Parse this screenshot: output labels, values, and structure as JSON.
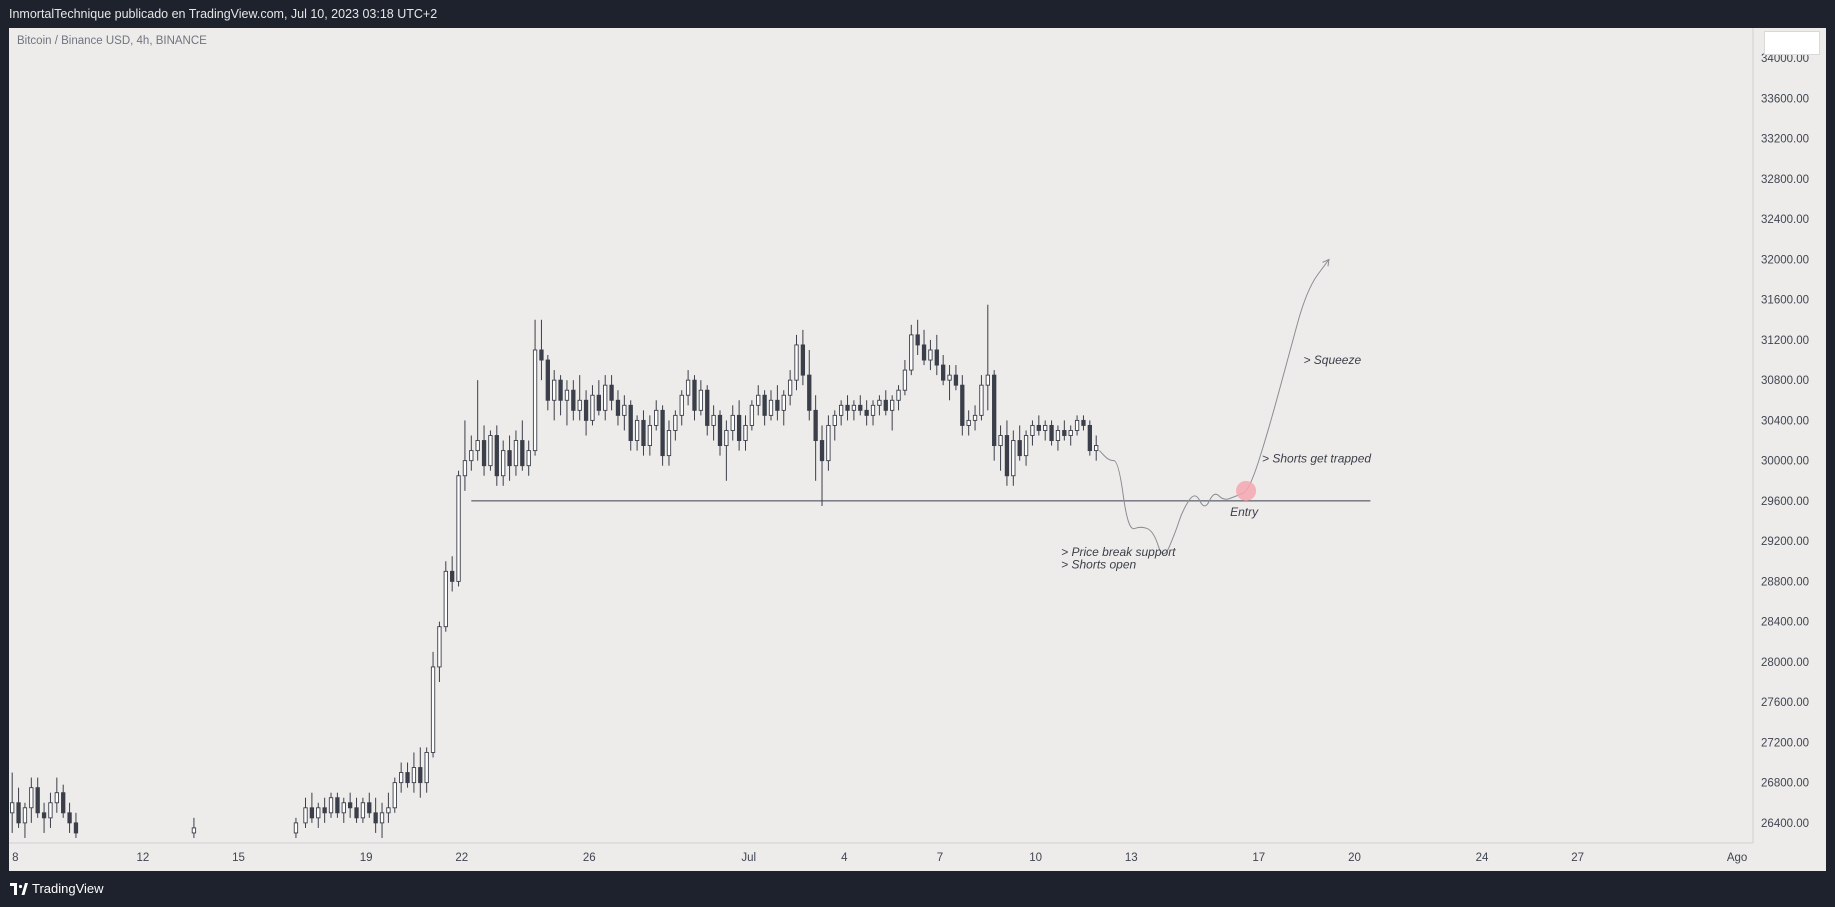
{
  "header": {
    "publish_text": "InmortalTechnique publicado en TradingView.com, Jul 10, 2023 03:18 UTC+2"
  },
  "footer": {
    "brand": "TradingView",
    "logo_icon": "tradingview-logo-icon"
  },
  "colors": {
    "background": "#1e222d",
    "chart_bg": "#edecea",
    "candle": "#3b3f4a",
    "highlight": "#f4a7b0"
  },
  "chart_data": {
    "type": "candlestick",
    "symbol": "Bitcoin / Binance USD, 4h, BINANCE",
    "y_ticks": [
      34000,
      33600,
      33200,
      32800,
      32400,
      32000,
      31600,
      31200,
      30800,
      30400,
      30000,
      29600,
      29200,
      28800,
      28400,
      28000,
      27600,
      27200,
      26800,
      26400
    ],
    "x_ticks": [
      {
        "label": "8",
        "day": 8
      },
      {
        "label": "12",
        "day": 12
      },
      {
        "label": "15",
        "day": 15
      },
      {
        "label": "19",
        "day": 19
      },
      {
        "label": "22",
        "day": 22
      },
      {
        "label": "26",
        "day": 26
      },
      {
        "label": "Jul",
        "day": 31
      },
      {
        "label": "4",
        "day": 34
      },
      {
        "label": "7",
        "day": 37
      },
      {
        "label": "10",
        "day": 40
      },
      {
        "label": "13",
        "day": 43
      },
      {
        "label": "17",
        "day": 47
      },
      {
        "label": "20",
        "day": 50
      },
      {
        "label": "24",
        "day": 54
      },
      {
        "label": "27",
        "day": 57
      },
      {
        "label": "Ago",
        "day": 62
      }
    ],
    "series_approx": [
      [
        7.7,
        26350,
        26700,
        26250,
        26500
      ],
      [
        7.9,
        26500,
        26900,
        26300,
        26600
      ],
      [
        8.1,
        26600,
        26750,
        26350,
        26400
      ],
      [
        8.3,
        26400,
        26600,
        26250,
        26550
      ],
      [
        8.5,
        26550,
        26850,
        26400,
        26750
      ],
      [
        8.7,
        26750,
        26850,
        26450,
        26500
      ],
      [
        8.9,
        26500,
        26600,
        26300,
        26450
      ],
      [
        9.1,
        26450,
        26700,
        26350,
        26600
      ],
      [
        9.3,
        26600,
        26850,
        26500,
        26700
      ],
      [
        9.5,
        26700,
        26780,
        26450,
        26500
      ],
      [
        9.7,
        26500,
        26600,
        26300,
        26400
      ],
      [
        9.9,
        26400,
        26500,
        26250,
        26300
      ],
      [
        13.6,
        26300,
        26450,
        26250,
        26350
      ],
      [
        16.8,
        26300,
        26450,
        26250,
        26400
      ],
      [
        17.1,
        26400,
        26650,
        26350,
        26550
      ],
      [
        17.3,
        26550,
        26700,
        26400,
        26450
      ],
      [
        17.5,
        26450,
        26600,
        26350,
        26550
      ],
      [
        17.7,
        26550,
        26650,
        26400,
        26500
      ],
      [
        17.9,
        26500,
        26700,
        26450,
        26650
      ],
      [
        18.1,
        26650,
        26700,
        26450,
        26500
      ],
      [
        18.3,
        26500,
        26650,
        26400,
        26600
      ],
      [
        18.5,
        26600,
        26700,
        26450,
        26550
      ],
      [
        18.7,
        26550,
        26650,
        26400,
        26450
      ],
      [
        18.9,
        26450,
        26650,
        26400,
        26600
      ],
      [
        19.1,
        26600,
        26700,
        26450,
        26500
      ],
      [
        19.3,
        26500,
        26650,
        26300,
        26400
      ],
      [
        19.5,
        26400,
        26600,
        26250,
        26500
      ],
      [
        19.7,
        26500,
        26700,
        26400,
        26550
      ],
      [
        19.9,
        26550,
        26850,
        26500,
        26800
      ],
      [
        20.1,
        26800,
        27000,
        26700,
        26900
      ],
      [
        20.3,
        26900,
        27000,
        26750,
        26800
      ],
      [
        20.5,
        26800,
        27100,
        26700,
        26950
      ],
      [
        20.7,
        26950,
        27150,
        26650,
        26800
      ],
      [
        20.9,
        26800,
        27150,
        26700,
        27100
      ],
      [
        21.1,
        27100,
        28100,
        27050,
        27950
      ],
      [
        21.3,
        27950,
        28400,
        27800,
        28350
      ],
      [
        21.5,
        28350,
        29000,
        28300,
        28900
      ],
      [
        21.7,
        28900,
        29050,
        28700,
        28800
      ],
      [
        21.9,
        28800,
        29900,
        28750,
        29850
      ],
      [
        22.1,
        29850,
        30400,
        29700,
        30000
      ],
      [
        22.3,
        30000,
        30250,
        29900,
        30100
      ],
      [
        22.5,
        30100,
        30800,
        30000,
        30200
      ],
      [
        22.7,
        30200,
        30350,
        29850,
        29950
      ],
      [
        22.9,
        29950,
        30300,
        29900,
        30250
      ],
      [
        23.1,
        30250,
        30350,
        29750,
        29850
      ],
      [
        23.3,
        29850,
        30200,
        29750,
        30100
      ],
      [
        23.5,
        30100,
        30250,
        29800,
        29950
      ],
      [
        23.7,
        29950,
        30300,
        29850,
        30200
      ],
      [
        23.9,
        30200,
        30400,
        29900,
        29950
      ],
      [
        24.1,
        29950,
        30200,
        29850,
        30100
      ],
      [
        24.3,
        30100,
        31400,
        30050,
        31100
      ],
      [
        24.5,
        31100,
        31400,
        30800,
        31000
      ],
      [
        24.7,
        31000,
        31050,
        30500,
        30600
      ],
      [
        24.9,
        30600,
        30900,
        30400,
        30800
      ],
      [
        25.1,
        30800,
        30850,
        30450,
        30600
      ],
      [
        25.3,
        30600,
        30800,
        30350,
        30700
      ],
      [
        25.5,
        30700,
        30800,
        30400,
        30500
      ],
      [
        25.7,
        30500,
        30850,
        30400,
        30600
      ],
      [
        25.9,
        30600,
        30700,
        30250,
        30400
      ],
      [
        26.1,
        30400,
        30750,
        30350,
        30650
      ],
      [
        26.3,
        30650,
        30800,
        30450,
        30500
      ],
      [
        26.5,
        30500,
        30850,
        30400,
        30750
      ],
      [
        26.7,
        30750,
        30850,
        30500,
        30600
      ],
      [
        26.9,
        30600,
        30700,
        30350,
        30450
      ],
      [
        27.1,
        30450,
        30650,
        30300,
        30550
      ],
      [
        27.3,
        30550,
        30600,
        30100,
        30200
      ],
      [
        27.5,
        30200,
        30450,
        30100,
        30400
      ],
      [
        27.7,
        30400,
        30500,
        30050,
        30150
      ],
      [
        27.9,
        30150,
        30450,
        30050,
        30350
      ],
      [
        28.1,
        30350,
        30600,
        30300,
        30500
      ],
      [
        28.3,
        30500,
        30550,
        29950,
        30050
      ],
      [
        28.5,
        30050,
        30400,
        29950,
        30300
      ],
      [
        28.7,
        30300,
        30500,
        30200,
        30450
      ],
      [
        28.9,
        30450,
        30700,
        30350,
        30650
      ],
      [
        29.1,
        30650,
        30900,
        30550,
        30800
      ],
      [
        29.3,
        30800,
        30850,
        30400,
        30500
      ],
      [
        29.5,
        30500,
        30800,
        30450,
        30700
      ],
      [
        29.7,
        30700,
        30750,
        30250,
        30350
      ],
      [
        29.9,
        30350,
        30550,
        30200,
        30450
      ],
      [
        30.1,
        30450,
        30500,
        30050,
        30150
      ],
      [
        30.3,
        30150,
        30400,
        29800,
        30300
      ],
      [
        30.5,
        30300,
        30550,
        30200,
        30450
      ],
      [
        30.7,
        30450,
        30600,
        30100,
        30200
      ],
      [
        30.9,
        30200,
        30450,
        30100,
        30350
      ],
      [
        31.1,
        30350,
        30600,
        30300,
        30550
      ],
      [
        31.3,
        30550,
        30750,
        30450,
        30650
      ],
      [
        31.5,
        30650,
        30700,
        30350,
        30450
      ],
      [
        31.7,
        30450,
        30700,
        30400,
        30600
      ],
      [
        31.9,
        30600,
        30750,
        30400,
        30500
      ],
      [
        32.1,
        30500,
        30700,
        30350,
        30650
      ],
      [
        32.3,
        30650,
        30900,
        30550,
        30800
      ],
      [
        32.5,
        30800,
        31250,
        30700,
        31150
      ],
      [
        32.7,
        31150,
        31300,
        30750,
        30850
      ],
      [
        32.9,
        30850,
        31100,
        30400,
        30500
      ],
      [
        33.1,
        30500,
        30650,
        29800,
        30200
      ],
      [
        33.3,
        30200,
        30350,
        29550,
        30000
      ],
      [
        33.5,
        30000,
        30450,
        29900,
        30350
      ],
      [
        33.7,
        30350,
        30500,
        30200,
        30450
      ],
      [
        33.9,
        30450,
        30600,
        30350,
        30550
      ],
      [
        34.1,
        30550,
        30650,
        30400,
        30500
      ],
      [
        34.3,
        30500,
        30600,
        30400,
        30550
      ],
      [
        34.5,
        30550,
        30650,
        30450,
        30500
      ],
      [
        34.7,
        30500,
        30600,
        30350,
        30450
      ],
      [
        34.9,
        30450,
        30600,
        30350,
        30550
      ],
      [
        35.1,
        30550,
        30650,
        30450,
        30600
      ],
      [
        35.3,
        30600,
        30700,
        30450,
        30500
      ],
      [
        35.5,
        30500,
        30650,
        30300,
        30600
      ],
      [
        35.7,
        30600,
        30750,
        30500,
        30700
      ],
      [
        35.9,
        30700,
        31000,
        30650,
        30900
      ],
      [
        36.1,
        30900,
        31350,
        30850,
        31250
      ],
      [
        36.3,
        31250,
        31400,
        31050,
        31150
      ],
      [
        36.5,
        31150,
        31300,
        30950,
        31000
      ],
      [
        36.7,
        31000,
        31200,
        30900,
        31100
      ],
      [
        36.9,
        31100,
        31250,
        30850,
        30950
      ],
      [
        37.1,
        30950,
        31050,
        30750,
        30800
      ],
      [
        37.3,
        30800,
        30950,
        30600,
        30850
      ],
      [
        37.5,
        30850,
        30950,
        30700,
        30750
      ],
      [
        37.7,
        30750,
        30850,
        30250,
        30350
      ],
      [
        37.9,
        30350,
        30500,
        30250,
        30400
      ],
      [
        38.1,
        30400,
        30550,
        30300,
        30450
      ],
      [
        38.3,
        30450,
        30850,
        30400,
        30750
      ],
      [
        38.5,
        30750,
        31550,
        30500,
        30850
      ],
      [
        38.7,
        30850,
        30900,
        30000,
        30150
      ],
      [
        38.9,
        30150,
        30350,
        29900,
        30250
      ],
      [
        39.1,
        30250,
        30400,
        29750,
        29850
      ],
      [
        39.3,
        29850,
        30300,
        29750,
        30200
      ],
      [
        39.5,
        30200,
        30350,
        30000,
        30050
      ],
      [
        39.7,
        30050,
        30300,
        29950,
        30250
      ],
      [
        39.9,
        30250,
        30400,
        30150,
        30350
      ],
      [
        40.1,
        30350,
        30450,
        30250,
        30300
      ],
      [
        40.3,
        30300,
        30400,
        30200,
        30350
      ],
      [
        40.5,
        30350,
        30400,
        30150,
        30200
      ],
      [
        40.7,
        30200,
        30350,
        30100,
        30300
      ],
      [
        40.9,
        30300,
        30400,
        30200,
        30250
      ],
      [
        41.1,
        30250,
        30350,
        30150,
        30300
      ],
      [
        41.3,
        30300,
        30450,
        30250,
        30400
      ],
      [
        41.5,
        30400,
        30450,
        30300,
        30350
      ],
      [
        41.7,
        30350,
        30400,
        30050,
        30100
      ],
      [
        41.9,
        30100,
        30250,
        30000,
        30150
      ]
    ],
    "support_line": 29600,
    "projection_path_approx": [
      [
        42.0,
        30100
      ],
      [
        42.3,
        30000
      ],
      [
        42.6,
        30000
      ],
      [
        42.9,
        29300
      ],
      [
        43.3,
        29350
      ],
      [
        43.7,
        29300
      ],
      [
        44.0,
        29000
      ],
      [
        44.4,
        29300
      ],
      [
        44.6,
        29500
      ],
      [
        45.0,
        29700
      ],
      [
        45.3,
        29500
      ],
      [
        45.6,
        29700
      ],
      [
        45.9,
        29600
      ],
      [
        46.3,
        29650
      ],
      [
        46.7,
        29700
      ],
      [
        47.3,
        30300
      ],
      [
        47.9,
        31000
      ],
      [
        48.5,
        31700
      ],
      [
        49.2,
        32000
      ]
    ],
    "entry_point": {
      "day": 46.6,
      "price": 29700
    },
    "annotations": [
      {
        "text": "> Price break support",
        "day": 40.8,
        "price": 29050
      },
      {
        "text": "> Shorts open",
        "day": 40.8,
        "price": 28930
      },
      {
        "text": "Entry",
        "day": 46.1,
        "price": 29450
      },
      {
        "text": "> Shorts get trapped",
        "day": 47.1,
        "price": 29980
      },
      {
        "text": "> Squeeze",
        "day": 48.4,
        "price": 30960
      }
    ],
    "y_range": [
      26200,
      34300
    ],
    "x_range": [
      7.8,
      62.5
    ],
    "grid": false
  }
}
